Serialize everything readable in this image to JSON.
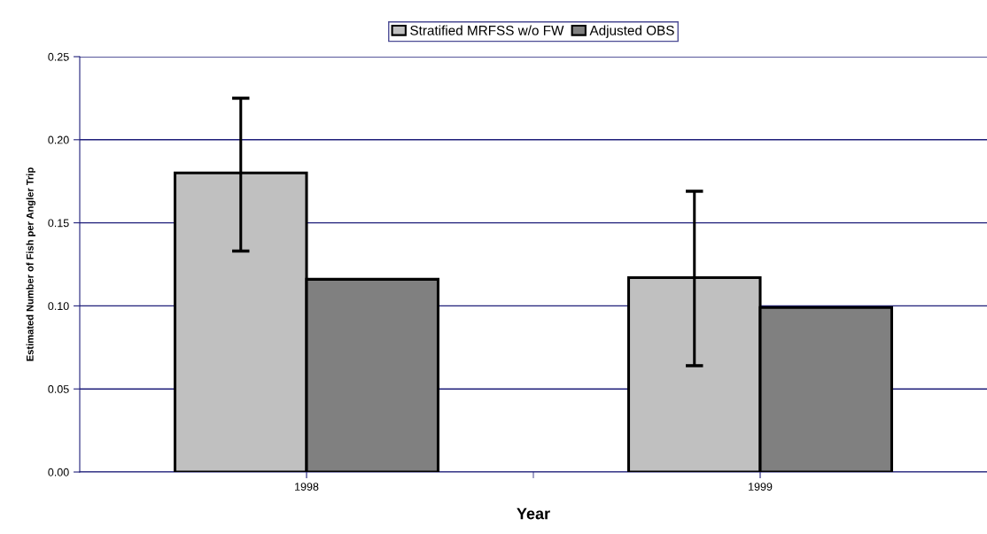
{
  "chart_data": {
    "type": "bar",
    "xlabel": "Year",
    "ylabel": "Estimated Number of Fish per Angler Trip",
    "categories": [
      "1998",
      "1999"
    ],
    "series": [
      {
        "name": "Stratified MRFSS w/o FW",
        "color": "#c0c0c0",
        "values": [
          0.18,
          0.117
        ],
        "errors": [
          [
            0.133,
            0.225
          ],
          [
            0.064,
            0.169
          ]
        ]
      },
      {
        "name": "Adjusted OBS",
        "color": "#808080",
        "values": [
          0.116,
          0.099
        ]
      }
    ],
    "ylim": [
      0,
      0.25
    ],
    "yticks": [
      {
        "value": 0,
        "label": "0.00"
      },
      {
        "value": 0.05,
        "label": "0.05"
      },
      {
        "value": 0.1,
        "label": "0.10"
      },
      {
        "value": 0.15,
        "label": "0.15"
      },
      {
        "value": 0.2,
        "label": "0.20"
      },
      {
        "value": 0.25,
        "label": "0.25"
      }
    ],
    "grid": "y",
    "legend": "top"
  }
}
